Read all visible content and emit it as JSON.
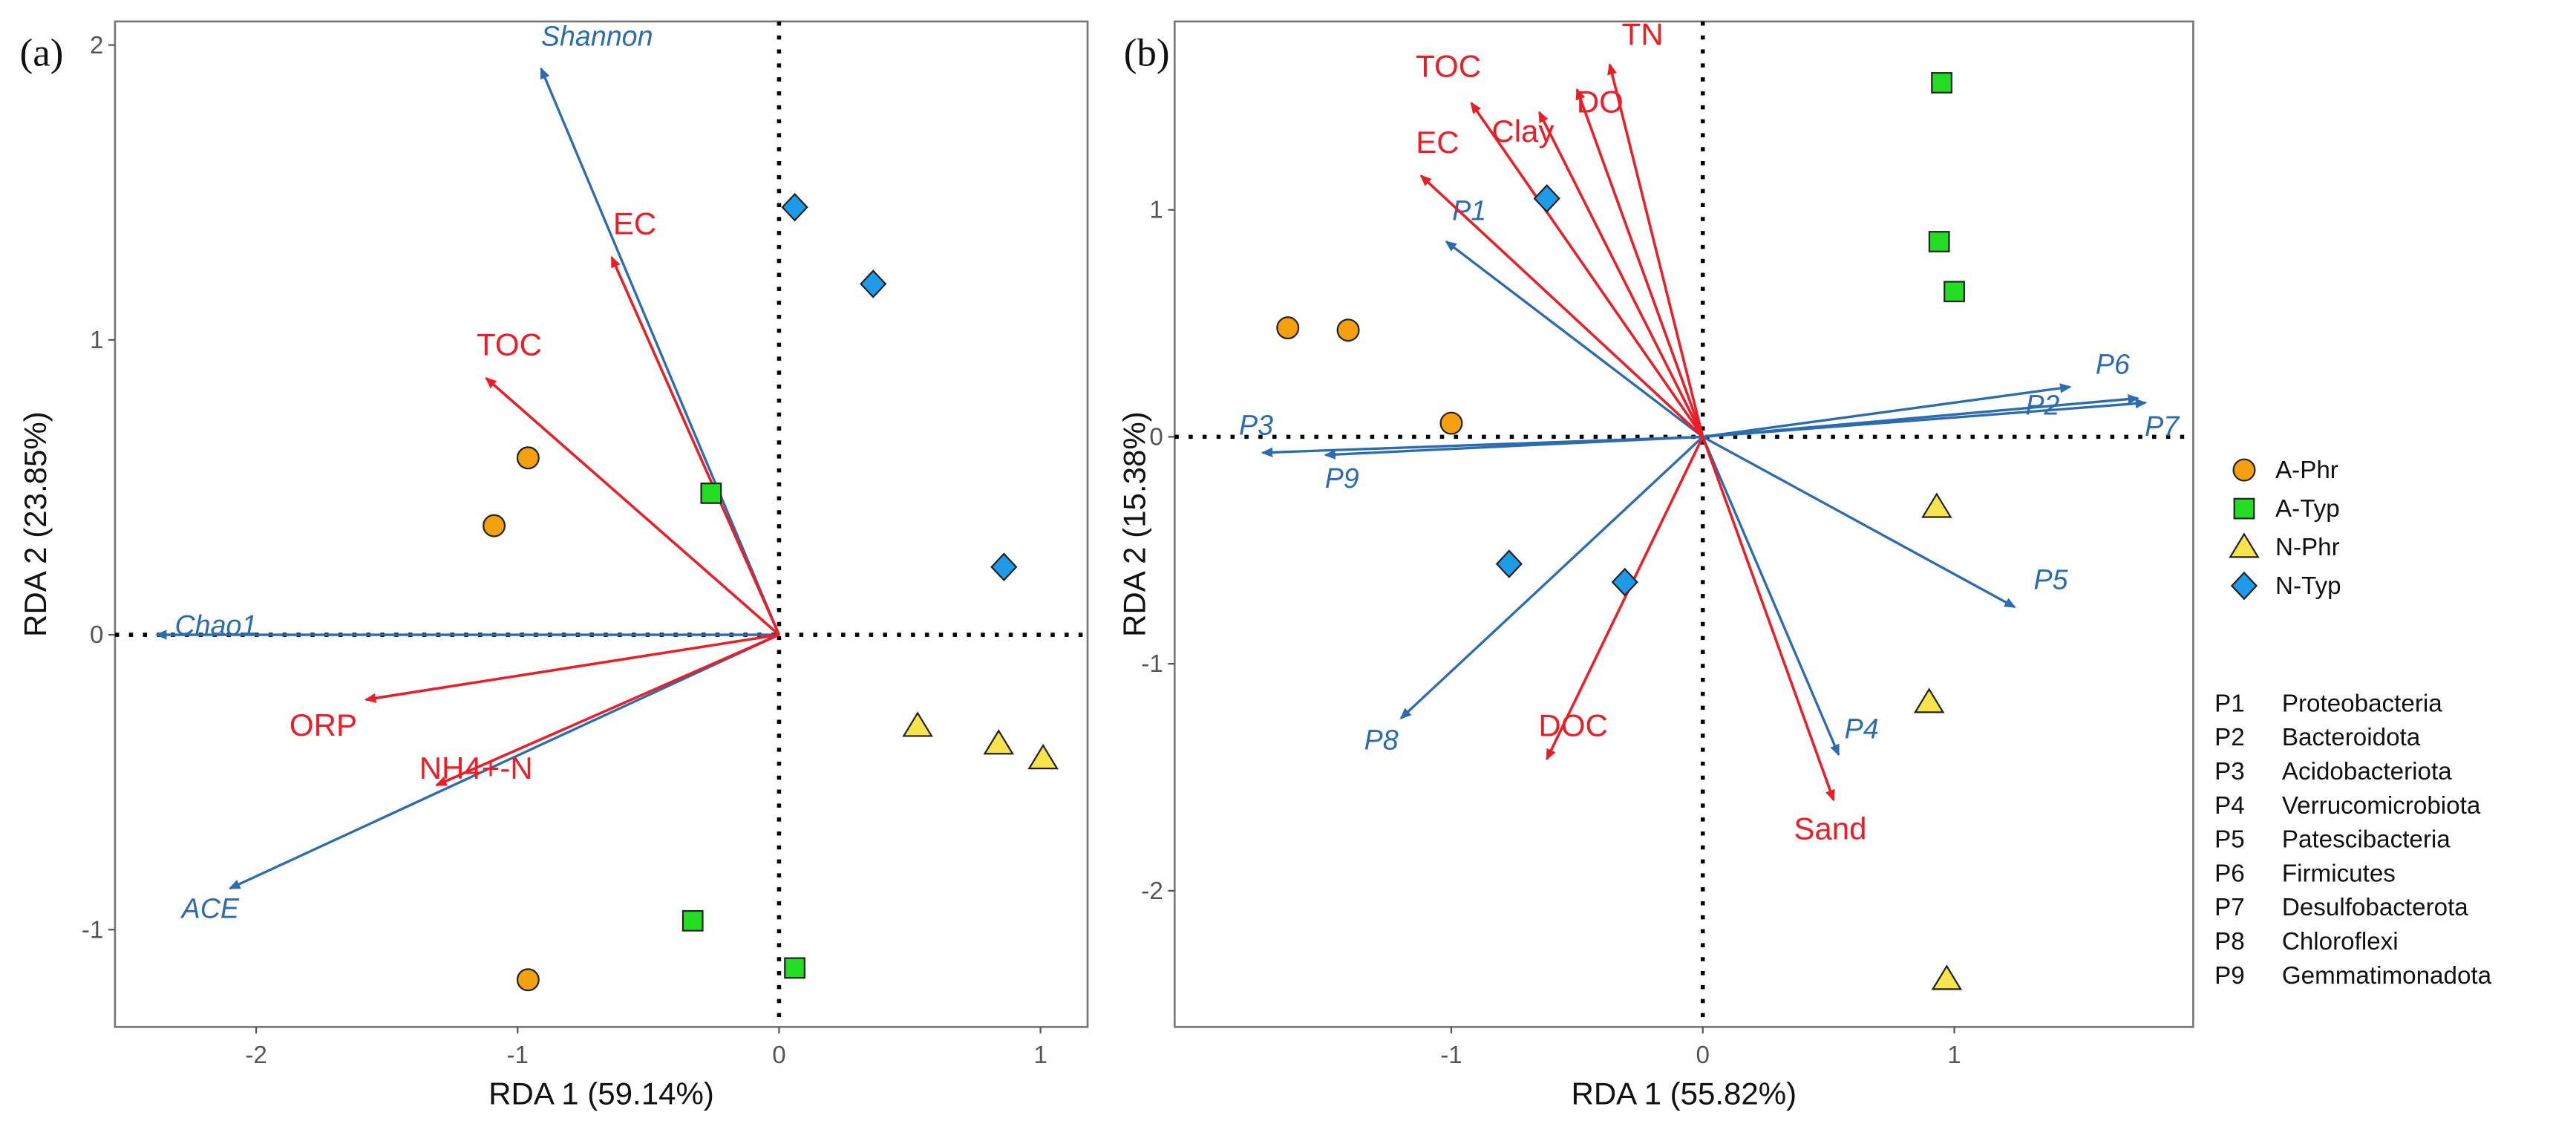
{
  "colors": {
    "env_arrow": "#ee1c25",
    "species_arrow": "#2b6cb0",
    "A-Phr": "#f5a00f",
    "A-Typ": "#22dd22",
    "N-Phr": "#f7e34a",
    "N-Typ": "#1e9be8"
  },
  "chart_data": [
    {
      "type": "scatter",
      "panel": "(a)",
      "xlabel": "RDA 1 (59.14%)",
      "ylabel": "RDA 2 (23.85%)",
      "xlim": [
        -2.54,
        1.18
      ],
      "ylim": [
        -1.33,
        2.08
      ],
      "xticks": [
        -2,
        -1,
        0,
        1
      ],
      "yticks": [
        -1,
        0,
        1,
        2
      ],
      "env_arrows": [
        {
          "name": "EC",
          "x": -0.64,
          "y": 1.28
        },
        {
          "name": "TOC",
          "x": -1.12,
          "y": 0.87
        },
        {
          "name": "ORP",
          "x": -1.58,
          "y": -0.22
        },
        {
          "name": "NH4+-N",
          "x": -1.31,
          "y": -0.51
        }
      ],
      "species_arrows": [
        {
          "name": "Shannon",
          "x": -0.91,
          "y": 1.92
        },
        {
          "name": "Chao1",
          "x": -2.38,
          "y": 0.0
        },
        {
          "name": "ACE",
          "x": -2.1,
          "y": -0.86
        }
      ],
      "series": [
        {
          "name": "A-Phr",
          "points": [
            [
              -0.96,
              0.6
            ],
            [
              -1.09,
              0.37
            ],
            [
              -0.96,
              -1.17
            ]
          ]
        },
        {
          "name": "A-Typ",
          "points": [
            [
              -0.26,
              0.48
            ],
            [
              -0.33,
              -0.97
            ],
            [
              0.06,
              -1.13
            ]
          ]
        },
        {
          "name": "N-Phr",
          "points": [
            [
              0.53,
              -0.31
            ],
            [
              0.84,
              -0.37
            ],
            [
              1.01,
              -0.42
            ]
          ]
        },
        {
          "name": "N-Typ",
          "points": [
            [
              0.06,
              1.45
            ],
            [
              0.36,
              1.19
            ],
            [
              0.86,
              0.23
            ]
          ]
        }
      ]
    },
    {
      "type": "scatter",
      "panel": "(b)",
      "xlabel": "RDA 1 (55.82%)",
      "ylabel": "RDA 2 (15.38%)",
      "xlim": [
        -2.1,
        1.95
      ],
      "ylim": [
        -2.6,
        1.83
      ],
      "xticks": [
        -1,
        0,
        1
      ],
      "yticks": [
        -2,
        -1,
        0,
        1
      ],
      "env_arrows": [
        {
          "name": "TN",
          "x": -0.37,
          "y": 1.64
        },
        {
          "name": "DO",
          "x": -0.5,
          "y": 1.53
        },
        {
          "name": "TOC",
          "x": -0.92,
          "y": 1.47
        },
        {
          "name": "Clay",
          "x": -0.65,
          "y": 1.43
        },
        {
          "name": "EC",
          "x": -1.12,
          "y": 1.15
        },
        {
          "name": "DOC",
          "x": -0.62,
          "y": -1.42
        },
        {
          "name": "Sand",
          "x": 0.52,
          "y": -1.6
        }
      ],
      "species_arrows": [
        {
          "name": "P1",
          "x": -1.02,
          "y": 0.86
        },
        {
          "name": "P2",
          "x": 1.73,
          "y": 0.17
        },
        {
          "name": "P3",
          "x": -1.75,
          "y": -0.07
        },
        {
          "name": "P4",
          "x": 0.54,
          "y": -1.4
        },
        {
          "name": "P5",
          "x": 1.24,
          "y": -0.75
        },
        {
          "name": "P6",
          "x": 1.46,
          "y": 0.22
        },
        {
          "name": "P7",
          "x": 1.76,
          "y": 0.15
        },
        {
          "name": "P8",
          "x": -1.2,
          "y": -1.24
        },
        {
          "name": "P9",
          "x": -1.5,
          "y": -0.08
        }
      ],
      "series": [
        {
          "name": "A-Phr",
          "points": [
            [
              -1.65,
              0.48
            ],
            [
              -1.41,
              0.47
            ],
            [
              -1.0,
              0.06
            ]
          ]
        },
        {
          "name": "A-Typ",
          "points": [
            [
              0.95,
              1.56
            ],
            [
              0.94,
              0.86
            ],
            [
              1.0,
              0.64
            ]
          ]
        },
        {
          "name": "N-Phr",
          "points": [
            [
              0.93,
              -0.31
            ],
            [
              0.9,
              -1.17
            ],
            [
              0.97,
              -2.39
            ]
          ]
        },
        {
          "name": "N-Typ",
          "points": [
            [
              -0.62,
              1.05
            ],
            [
              -0.77,
              -0.56
            ],
            [
              -0.31,
              -0.64
            ]
          ]
        }
      ]
    }
  ],
  "legend": {
    "groups": [
      {
        "name": "A-Phr",
        "shape": "circle"
      },
      {
        "name": "A-Typ",
        "shape": "square"
      },
      {
        "name": "N-Phr",
        "shape": "triangle"
      },
      {
        "name": "N-Typ",
        "shape": "diamond"
      }
    ],
    "phyla": [
      {
        "code": "P1",
        "name": "Proteobacteria"
      },
      {
        "code": "P2",
        "name": "Bacteroidota"
      },
      {
        "code": "P3",
        "name": "Acidobacteriota"
      },
      {
        "code": "P4",
        "name": "Verrucomicrobiota"
      },
      {
        "code": "P5",
        "name": "Patescibacteria"
      },
      {
        "code": "P6",
        "name": "Firmicutes"
      },
      {
        "code": "P7",
        "name": "Desulfobacterota"
      },
      {
        "code": "P8",
        "name": "Chloroflexi"
      },
      {
        "code": "P9",
        "name": "Gemmatimonadota"
      }
    ]
  }
}
